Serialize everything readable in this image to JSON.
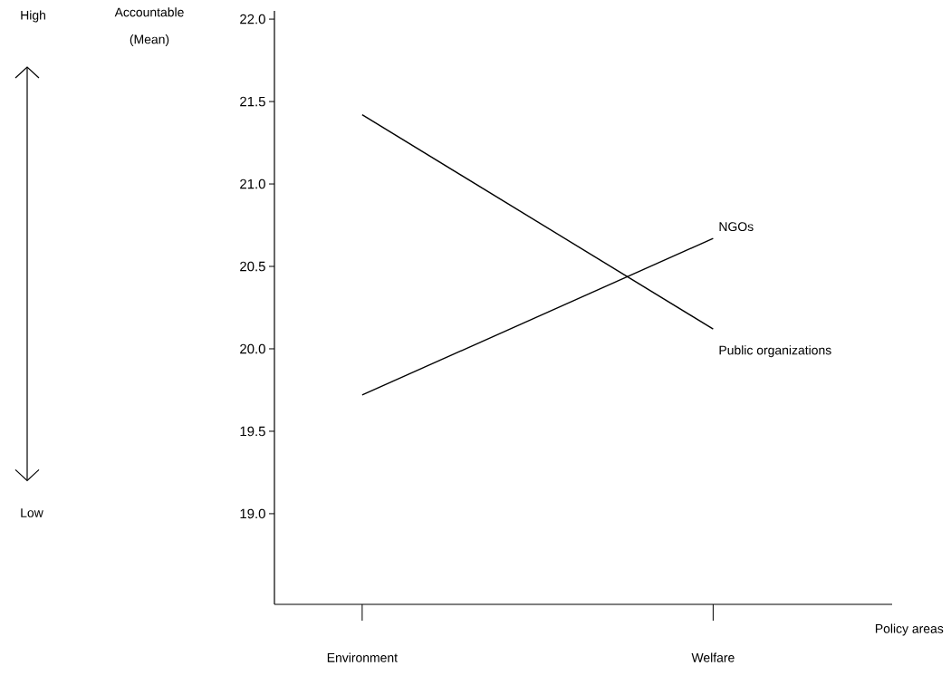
{
  "chart_data": {
    "type": "line",
    "ylabel": "Accountable (Mean)",
    "xlabel": "Policy areas",
    "categories": [
      "Environment",
      "Welfare"
    ],
    "series": [
      {
        "name": "Public organizations",
        "color": "#000000",
        "values": [
          21.42,
          20.12
        ]
      },
      {
        "name": "NGOs",
        "color": "#000000",
        "values": [
          19.72,
          20.67
        ]
      }
    ],
    "ylim": [
      18.45,
      22.05
    ],
    "yticks": [
      {
        "value": 19,
        "label": "19.0"
      },
      {
        "value": 19.5,
        "label": "19.5"
      },
      {
        "value": 20,
        "label": "20.0"
      },
      {
        "value": 20.5,
        "label": "20.5"
      },
      {
        "value": 21,
        "label": "21.0"
      },
      {
        "value": 21.5,
        "label": "21.5"
      },
      {
        "value": 22,
        "label": "22.0"
      }
    ],
    "annotations": [
      "High",
      "Low"
    ]
  }
}
